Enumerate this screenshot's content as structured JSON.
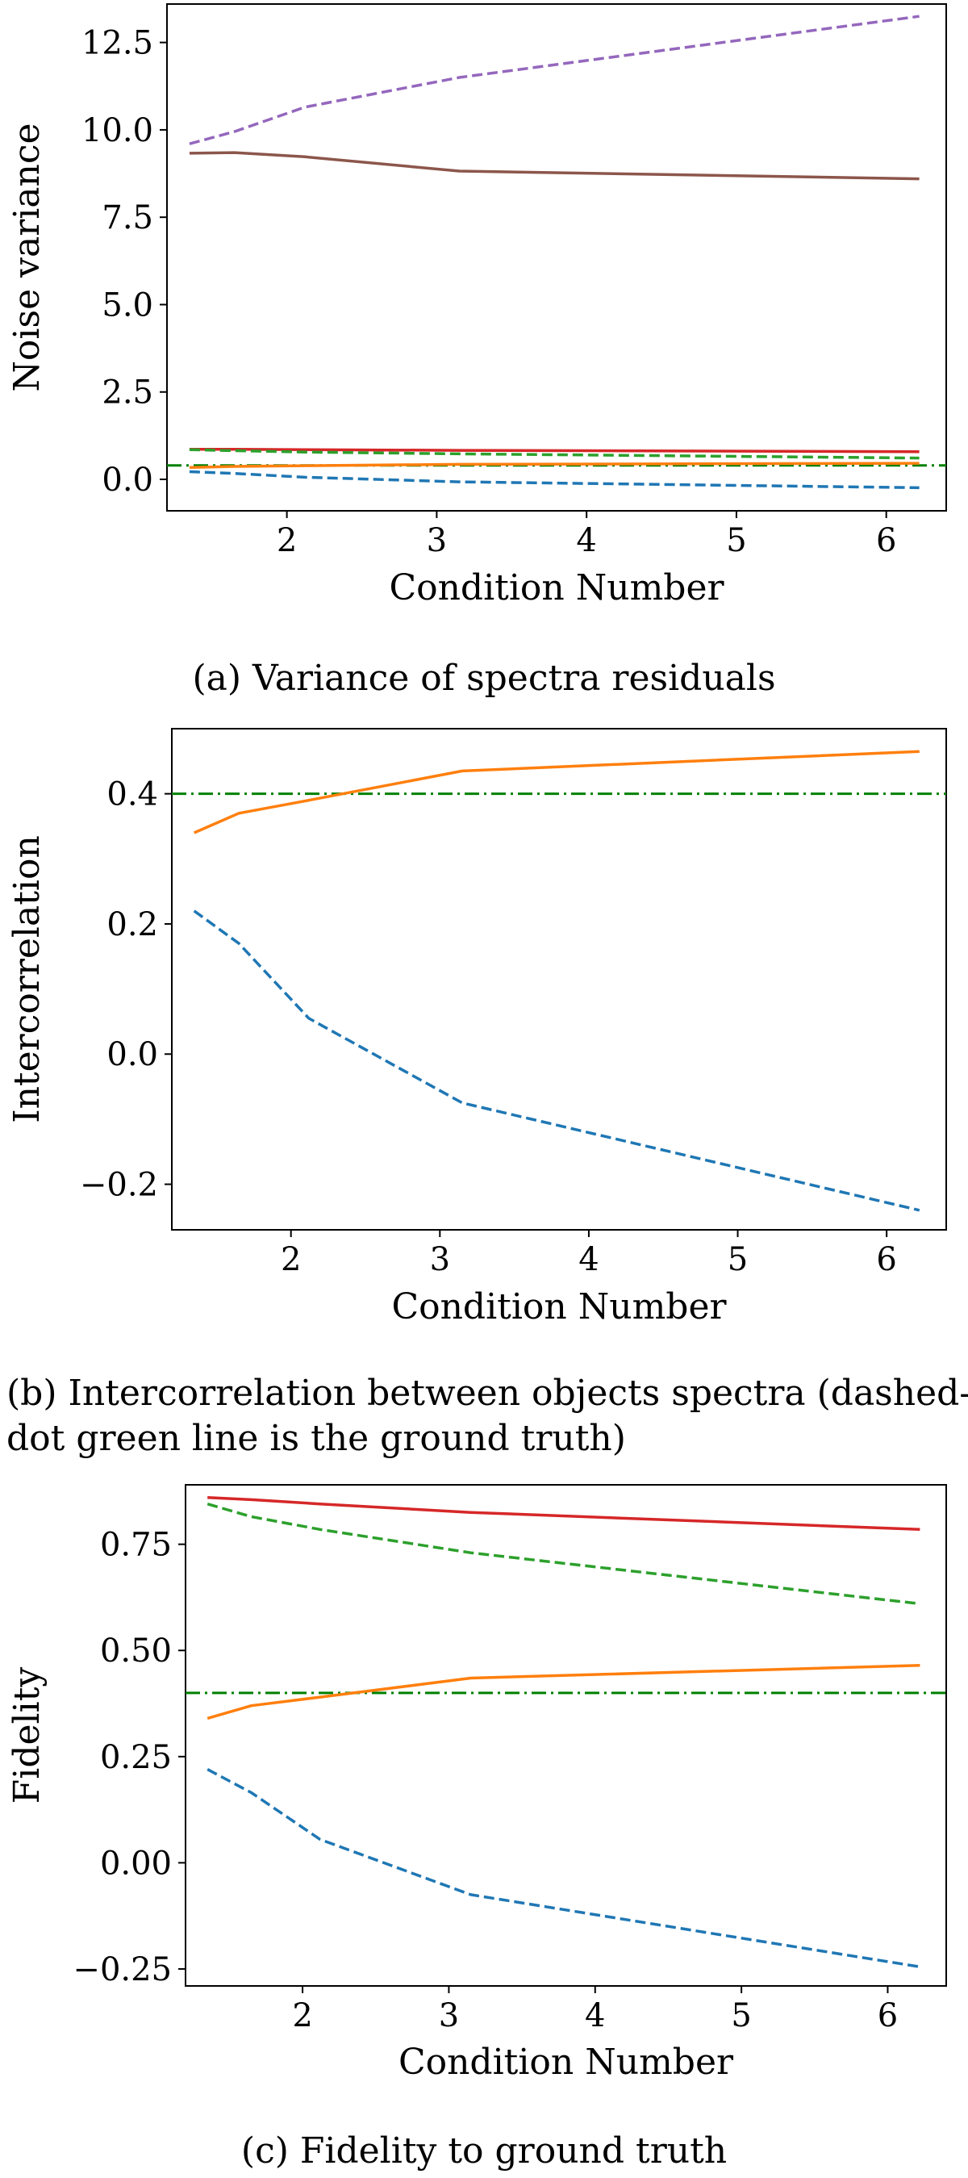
{
  "chart_data": [
    {
      "type": "line",
      "caption": "(a) Variance of spectra residuals",
      "xlabel": "Condition Number",
      "ylabel": "Noise variance",
      "xlim": [
        1.2,
        6.4
      ],
      "ylim": [
        -0.9,
        13.6
      ],
      "xticks": [
        2,
        3,
        4,
        5,
        6
      ],
      "xtick_labels": [
        "2",
        "3",
        "4",
        "5",
        "6"
      ],
      "yticks": [
        0.0,
        2.5,
        5.0,
        7.5,
        10.0,
        12.5
      ],
      "ytick_labels": [
        "0.0",
        "2.5",
        "5.0",
        "7.5",
        "10.0",
        "12.5"
      ],
      "grid": false,
      "x": [
        1.35,
        1.65,
        2.12,
        3.15,
        6.22
      ],
      "series": [
        {
          "name": "purple dashed",
          "color": "#9467bd",
          "style": "dashed",
          "values": [
            9.6,
            9.95,
            10.65,
            11.5,
            13.25
          ]
        },
        {
          "name": "brown solid",
          "color": "#8c564b",
          "style": "solid",
          "values": [
            9.33,
            9.35,
            9.23,
            8.82,
            8.6
          ]
        },
        {
          "name": "red solid",
          "color": "#d62728",
          "style": "solid",
          "values": [
            0.86,
            0.86,
            0.85,
            0.83,
            0.79
          ]
        },
        {
          "name": "green dashed",
          "color": "#2ca02c",
          "style": "dashed",
          "values": [
            0.85,
            0.82,
            0.78,
            0.73,
            0.61
          ]
        },
        {
          "name": "orange solid",
          "color": "#ff7f0e",
          "style": "solid",
          "values": [
            0.34,
            0.37,
            0.39,
            0.43,
            0.46
          ]
        },
        {
          "name": "blue dashed",
          "color": "#1f77b4",
          "style": "dashed",
          "values": [
            0.22,
            0.17,
            0.06,
            -0.07,
            -0.24
          ]
        }
      ],
      "hlines": [
        {
          "name": "ground truth",
          "color": "#008000",
          "style": "dashdot",
          "value": 0.4
        }
      ]
    },
    {
      "type": "line",
      "caption": "(b) Intercorrelation between objects spectra (dashed-dot green line is the ground truth)",
      "caption_lines": [
        "(b) Intercorrelation between objects spectra (dashed-",
        "dot green line is the ground truth)"
      ],
      "xlabel": "Condition Number",
      "ylabel": "Intercorrelation",
      "xlim": [
        1.2,
        6.4
      ],
      "ylim": [
        -0.27,
        0.5
      ],
      "xticks": [
        2,
        3,
        4,
        5,
        6
      ],
      "xtick_labels": [
        "2",
        "3",
        "4",
        "5",
        "6"
      ],
      "yticks": [
        -0.2,
        0.0,
        0.2,
        0.4
      ],
      "ytick_labels": [
        "−0.2",
        "0.0",
        "0.2",
        "0.4"
      ],
      "grid": false,
      "x": [
        1.35,
        1.65,
        2.12,
        3.15,
        6.22
      ],
      "series": [
        {
          "name": "orange solid",
          "color": "#ff7f0e",
          "style": "solid",
          "values": [
            0.34,
            0.37,
            0.39,
            0.435,
            0.465
          ]
        },
        {
          "name": "blue dashed",
          "color": "#1f77b4",
          "style": "dashed",
          "values": [
            0.22,
            0.17,
            0.055,
            -0.075,
            -0.24
          ]
        }
      ],
      "hlines": [
        {
          "name": "ground truth",
          "color": "#008000",
          "style": "dashdot",
          "value": 0.4
        }
      ]
    },
    {
      "type": "line",
      "caption": "(c) Fidelity to ground truth",
      "xlabel": "Condition Number",
      "ylabel": "Fidelity",
      "xlim": [
        1.2,
        6.4
      ],
      "ylim": [
        -0.29,
        0.89
      ],
      "xticks": [
        2,
        3,
        4,
        5,
        6
      ],
      "xtick_labels": [
        "2",
        "3",
        "4",
        "5",
        "6"
      ],
      "yticks": [
        -0.25,
        0.0,
        0.25,
        0.5,
        0.75
      ],
      "ytick_labels": [
        "−0.25",
        "0.00",
        "0.25",
        "0.50",
        "0.75"
      ],
      "grid": false,
      "x": [
        1.35,
        1.65,
        2.12,
        3.15,
        6.22
      ],
      "series": [
        {
          "name": "red solid",
          "color": "#d62728",
          "style": "solid",
          "values": [
            0.86,
            0.855,
            0.845,
            0.825,
            0.785
          ]
        },
        {
          "name": "green dashed",
          "color": "#2ca02c",
          "style": "dashed",
          "values": [
            0.845,
            0.815,
            0.785,
            0.73,
            0.61
          ]
        },
        {
          "name": "orange solid",
          "color": "#ff7f0e",
          "style": "solid",
          "values": [
            0.34,
            0.37,
            0.39,
            0.435,
            0.465
          ]
        },
        {
          "name": "blue dashed",
          "color": "#1f77b4",
          "style": "dashed",
          "values": [
            0.22,
            0.165,
            0.055,
            -0.075,
            -0.245
          ]
        }
      ],
      "hlines": [
        {
          "name": "ground truth",
          "color": "#008000",
          "style": "dashdot",
          "value": 0.4
        }
      ]
    }
  ]
}
